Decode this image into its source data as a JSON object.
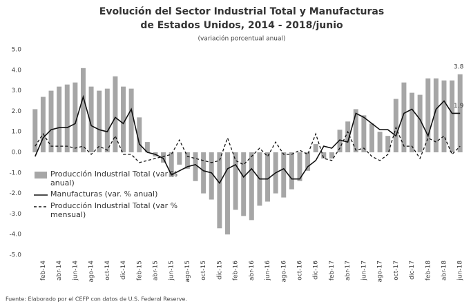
{
  "chart_data": {
    "type": "bar-line",
    "title": [
      "Evolución del Sector Industrial Total y Manufacturas",
      "de Estados Unidos, 2014 - 2018/junio"
    ],
    "subtitle": "(variación porcentual anual)",
    "source": "Fuente: Elaborado por el CEFP con datos de U.S. Federal Reserve.",
    "categories": [
      null,
      "feb-14",
      null,
      "abr-14",
      null,
      "jun-14",
      null,
      "ago-14",
      null,
      "oct-14",
      null,
      "dic-14",
      null,
      "feb-15",
      null,
      "abr-15",
      null,
      "jun-15",
      null,
      "ago-15",
      null,
      "oct-15",
      null,
      "dic-15",
      null,
      "feb-16",
      null,
      "abr-16",
      null,
      "jun-16",
      null,
      "ago-16",
      null,
      "oct-16",
      null,
      "dic-16",
      null,
      "feb-17",
      null,
      "abr-17",
      null,
      "jun-17",
      null,
      "ago-17",
      null,
      "oct-17",
      null,
      "dic-17",
      null,
      "feb-18",
      null,
      "abr-18",
      null,
      "jun-18"
    ],
    "series": [
      {
        "name": "Producción Industrial Total (var % anual)",
        "kind": "bar",
        "color": "#a6a6a6",
        "values": [
          2.1,
          2.7,
          3.0,
          3.2,
          3.3,
          3.4,
          4.1,
          3.2,
          3.0,
          3.1,
          3.7,
          3.2,
          3.1,
          1.7,
          0.5,
          -0.2,
          -0.5,
          -1.2,
          -0.6,
          -0.8,
          -1.4,
          -2.0,
          -2.3,
          -3.7,
          -4.0,
          -2.8,
          -3.1,
          -3.3,
          -2.6,
          -2.4,
          -2.0,
          -2.2,
          -1.8,
          -1.4,
          -0.9,
          0.4,
          -0.3,
          -0.3,
          1.1,
          1.5,
          2.1,
          1.8,
          1.4,
          1.0,
          0.8,
          2.6,
          3.4,
          2.9,
          2.8,
          3.6,
          3.6,
          3.5,
          3.5,
          3.8
        ],
        "value_labels": [
          null,
          null,
          null,
          null,
          null,
          null,
          null,
          null,
          null,
          null,
          null,
          null,
          null,
          null,
          null,
          null,
          null,
          null,
          null,
          null,
          null,
          null,
          null,
          null,
          null,
          null,
          null,
          null,
          null,
          null,
          null,
          null,
          null,
          null,
          null,
          null,
          null,
          null,
          null,
          null,
          null,
          null,
          null,
          null,
          null,
          null,
          null,
          null,
          null,
          null,
          null,
          null,
          null,
          "3.8"
        ]
      },
      {
        "name": "Manufacturas (var. % anual)",
        "kind": "line",
        "color": "#111111",
        "values": [
          -0.2,
          0.7,
          1.1,
          1.2,
          1.2,
          1.4,
          2.7,
          1.3,
          1.1,
          1.0,
          1.7,
          1.4,
          2.1,
          0.4,
          0.0,
          -0.1,
          -0.3,
          -1.1,
          -0.9,
          -0.7,
          -0.6,
          -0.9,
          -1.0,
          -1.5,
          -0.8,
          -0.6,
          -1.2,
          -0.8,
          -1.3,
          -1.3,
          -1.0,
          -0.8,
          -1.3,
          -1.3,
          -0.7,
          -0.4,
          0.3,
          0.2,
          0.6,
          0.5,
          1.9,
          1.7,
          1.4,
          1.1,
          1.1,
          0.8,
          1.9,
          2.1,
          1.6,
          0.8,
          2.1,
          2.5,
          1.9,
          1.9
        ],
        "value_labels": [
          null,
          null,
          null,
          null,
          null,
          null,
          null,
          null,
          null,
          null,
          null,
          null,
          null,
          null,
          null,
          null,
          null,
          null,
          null,
          null,
          null,
          null,
          null,
          null,
          null,
          null,
          null,
          null,
          null,
          null,
          null,
          null,
          null,
          null,
          null,
          null,
          null,
          null,
          null,
          null,
          null,
          null,
          null,
          null,
          null,
          null,
          null,
          null,
          null,
          null,
          null,
          null,
          null,
          "1.9"
        ]
      },
      {
        "name": "Producción Industrial Total (var % mensual)",
        "kind": "dashed",
        "color": "#111111",
        "values": [
          0.3,
          0.9,
          0.3,
          0.3,
          0.3,
          0.2,
          0.3,
          -0.1,
          0.3,
          0.1,
          0.8,
          -0.1,
          -0.1,
          -0.5,
          -0.4,
          -0.3,
          -0.2,
          -0.1,
          0.6,
          -0.2,
          -0.3,
          -0.4,
          -0.5,
          -0.4,
          0.7,
          -0.4,
          -0.6,
          -0.2,
          0.2,
          -0.2,
          0.5,
          -0.1,
          -0.1,
          0.1,
          -0.1,
          0.9,
          -0.3,
          -0.4,
          0.2,
          1.0,
          0.1,
          0.2,
          -0.2,
          -0.4,
          -0.1,
          1.2,
          0.3,
          0.3,
          -0.3,
          0.7,
          0.5,
          0.8,
          -0.1,
          0.3
        ]
      }
    ],
    "ylim": [
      -5,
      5
    ],
    "yticks": [
      {
        "value": 5,
        "label": "5.0"
      },
      {
        "value": 4,
        "label": "4.0"
      },
      {
        "value": 3,
        "label": "3.0"
      },
      {
        "value": 2,
        "label": "2.0"
      },
      {
        "value": 1,
        "label": "1.0"
      },
      {
        "value": 0,
        "label": "0.0"
      },
      {
        "value": -1,
        "label": "-1.0"
      },
      {
        "value": -2,
        "label": "-2.0"
      },
      {
        "value": -3,
        "label": "-3.0"
      },
      {
        "value": -4,
        "label": "-4.0"
      },
      {
        "value": -5,
        "label": "-5.0"
      }
    ],
    "grid": false,
    "legend": "lower left"
  }
}
